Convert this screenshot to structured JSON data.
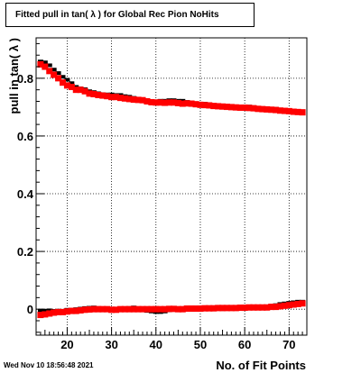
{
  "chart_data": {
    "type": "scatter",
    "title": "Fitted pull in tan( λ ) for Global Rec Pion NoHits",
    "xlabel": "No. of Fit Points",
    "ylabel": "pull in tan( λ )",
    "xlim": [
      13,
      74
    ],
    "ylim": [
      -0.09,
      0.94
    ],
    "xticks": [
      20,
      30,
      40,
      50,
      60,
      70
    ],
    "yticks": [
      0,
      0.2,
      0.4,
      0.6,
      0.8
    ],
    "ytick_labels": [
      "0",
      "0.2",
      "0.4",
      "0.6",
      "0.8"
    ],
    "grid": true,
    "series": [
      {
        "color": "#000000",
        "x": [
          14,
          15,
          16,
          17,
          18,
          19,
          20,
          21,
          22,
          23,
          24,
          25,
          26,
          27,
          28,
          29,
          30,
          31,
          32,
          33,
          34,
          35,
          36,
          37,
          38,
          39,
          40,
          41,
          42,
          43,
          44,
          45,
          46,
          47,
          48,
          49,
          50,
          51,
          52,
          53,
          54,
          55,
          56,
          57,
          58,
          59,
          60,
          61,
          62,
          63,
          64,
          65,
          66,
          67,
          68,
          69,
          70,
          71,
          72,
          73
        ],
        "upper": [
          0.858,
          0.855,
          0.845,
          0.83,
          0.818,
          0.805,
          0.795,
          0.783,
          0.77,
          0.765,
          0.762,
          0.755,
          0.752,
          0.748,
          0.745,
          0.744,
          0.744,
          0.742,
          0.742,
          0.738,
          0.736,
          0.732,
          0.728,
          0.726,
          0.722,
          0.72,
          0.718,
          0.722,
          0.722,
          0.724,
          0.724,
          0.722,
          0.722,
          0.718,
          0.716,
          0.712,
          0.712,
          0.712,
          0.708,
          0.706,
          0.706,
          0.704,
          0.702,
          0.702,
          0.702,
          0.7,
          0.7,
          0.702,
          0.7,
          0.697,
          0.696,
          0.695,
          0.695,
          0.694,
          0.692,
          0.69,
          0.688,
          0.686,
          0.685,
          0.684
        ],
        "lower": [
          -0.005,
          -0.005,
          -0.004,
          -0.006,
          -0.005,
          -0.006,
          -0.002,
          -0.002,
          0.0,
          0.002,
          0.004,
          0.005,
          0.006,
          0.004,
          0.002,
          0.0,
          -0.002,
          -0.002,
          0.0,
          0.002,
          0.004,
          0.006,
          0.002,
          -0.004,
          -0.006,
          -0.008,
          -0.01,
          -0.01,
          -0.008,
          -0.004,
          -0.002,
          0.0,
          0.002,
          0.002,
          0.002,
          0.0,
          0.0,
          0.002,
          0.004,
          0.004,
          0.002,
          0.0,
          0.002,
          0.004,
          0.005,
          0.006,
          0.006,
          0.006,
          0.008,
          0.008,
          0.008,
          0.01,
          0.012,
          0.014,
          0.018,
          0.02,
          0.022,
          0.024,
          0.026,
          0.026
        ]
      },
      {
        "color": "#ff0000",
        "x": [
          14,
          15,
          16,
          17,
          18,
          19,
          20,
          21,
          22,
          23,
          24,
          25,
          26,
          27,
          28,
          29,
          30,
          31,
          32,
          33,
          34,
          35,
          36,
          37,
          38,
          39,
          40,
          41,
          42,
          43,
          44,
          45,
          46,
          47,
          48,
          49,
          50,
          51,
          52,
          53,
          54,
          55,
          56,
          57,
          58,
          59,
          60,
          61,
          62,
          63,
          64,
          65,
          66,
          67,
          68,
          69,
          70,
          71,
          72,
          73
        ],
        "upper": [
          0.848,
          0.84,
          0.825,
          0.812,
          0.8,
          0.785,
          0.775,
          0.77,
          0.76,
          0.76,
          0.755,
          0.747,
          0.745,
          0.742,
          0.74,
          0.738,
          0.735,
          0.735,
          0.732,
          0.73,
          0.728,
          0.726,
          0.725,
          0.724,
          0.72,
          0.717,
          0.716,
          0.716,
          0.715,
          0.716,
          0.716,
          0.714,
          0.712,
          0.713,
          0.712,
          0.71,
          0.708,
          0.707,
          0.706,
          0.704,
          0.703,
          0.702,
          0.701,
          0.7,
          0.699,
          0.698,
          0.698,
          0.697,
          0.696,
          0.694,
          0.693,
          0.692,
          0.691,
          0.69,
          0.688,
          0.687,
          0.686,
          0.684,
          0.683,
          0.682
        ],
        "lower": [
          -0.02,
          -0.018,
          -0.015,
          -0.012,
          -0.01,
          -0.01,
          -0.008,
          -0.006,
          -0.006,
          -0.004,
          -0.002,
          -0.001,
          0.0,
          0.0,
          0.0,
          0.0,
          -0.002,
          -0.002,
          0.0,
          0.0,
          0.0,
          0.0,
          0.0,
          0.0,
          0.0,
          0.0,
          0.0,
          0.0,
          0.0,
          0.001,
          0.001,
          0.0,
          0.0,
          0.002,
          0.002,
          0.002,
          0.002,
          0.003,
          0.003,
          0.003,
          0.004,
          0.004,
          0.004,
          0.004,
          0.004,
          0.005,
          0.005,
          0.006,
          0.006,
          0.006,
          0.006,
          0.006,
          0.008,
          0.008,
          0.01,
          0.012,
          0.014,
          0.016,
          0.018,
          0.02
        ]
      }
    ]
  },
  "footer": {
    "timestamp": "Wed Nov 10 18:56:48 2021"
  }
}
